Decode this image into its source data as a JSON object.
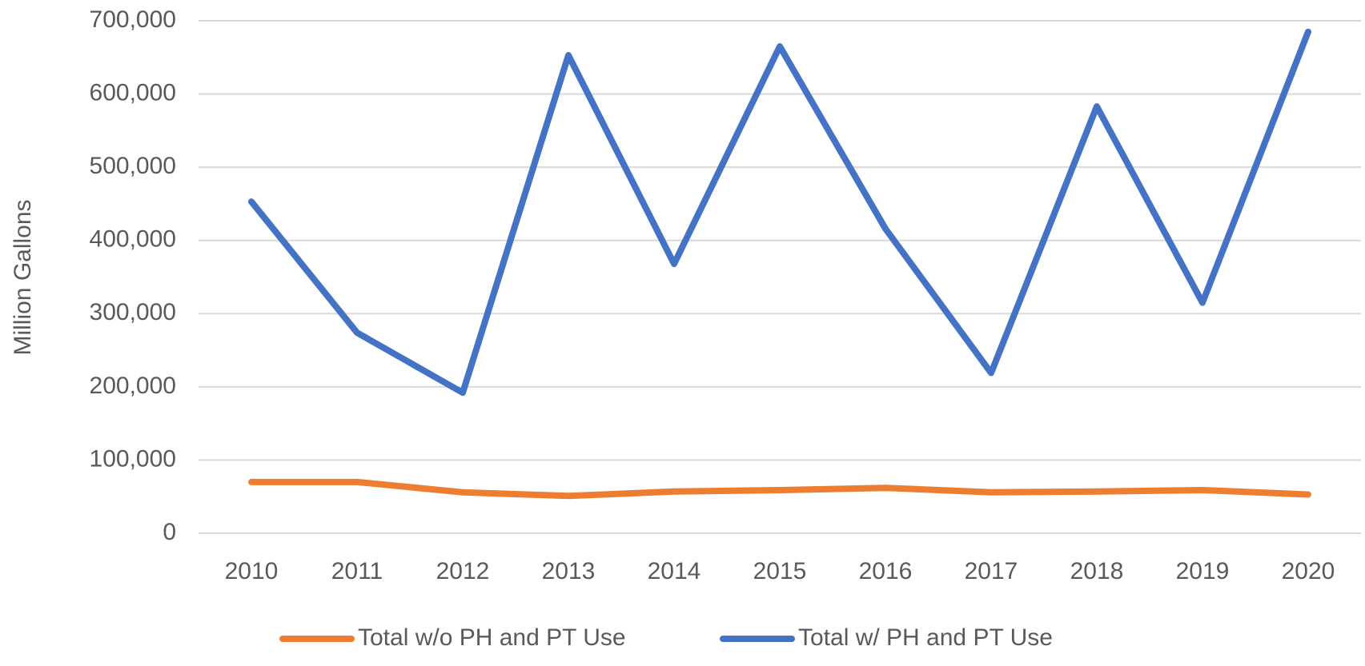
{
  "chart_data": {
    "type": "line",
    "y_label": "Million Gallons",
    "categories": [
      "2010",
      "2011",
      "2012",
      "2013",
      "2014",
      "2015",
      "2016",
      "2017",
      "2018",
      "2019",
      "2020"
    ],
    "series": [
      {
        "name": "Total w/o PH and PT Use",
        "color": "#ed7d31",
        "values": [
          70000,
          70000,
          56000,
          51000,
          57000,
          59000,
          62000,
          56000,
          57000,
          59000,
          53000
        ]
      },
      {
        "name": "Total w/ PH and PT Use",
        "color": "#4472c4",
        "values": [
          453000,
          274000,
          192000,
          653000,
          368000,
          665000,
          416000,
          219000,
          583000,
          315000,
          685000
        ]
      }
    ],
    "ylim": [
      0,
      700000
    ],
    "yticks": [
      0,
      {
        "value": 100000,
        "label": "100,000"
      },
      {
        "value": 200000,
        "label": "200,000"
      },
      {
        "value": 300000,
        "label": "300,000"
      },
      {
        "value": 400000,
        "label": "400,000"
      },
      {
        "value": 500000,
        "label": "500,000"
      },
      {
        "value": 600000,
        "label": "600,000"
      },
      {
        "value": 700000,
        "label": "700,000"
      }
    ],
    "grid": true,
    "legend": "bottom"
  }
}
